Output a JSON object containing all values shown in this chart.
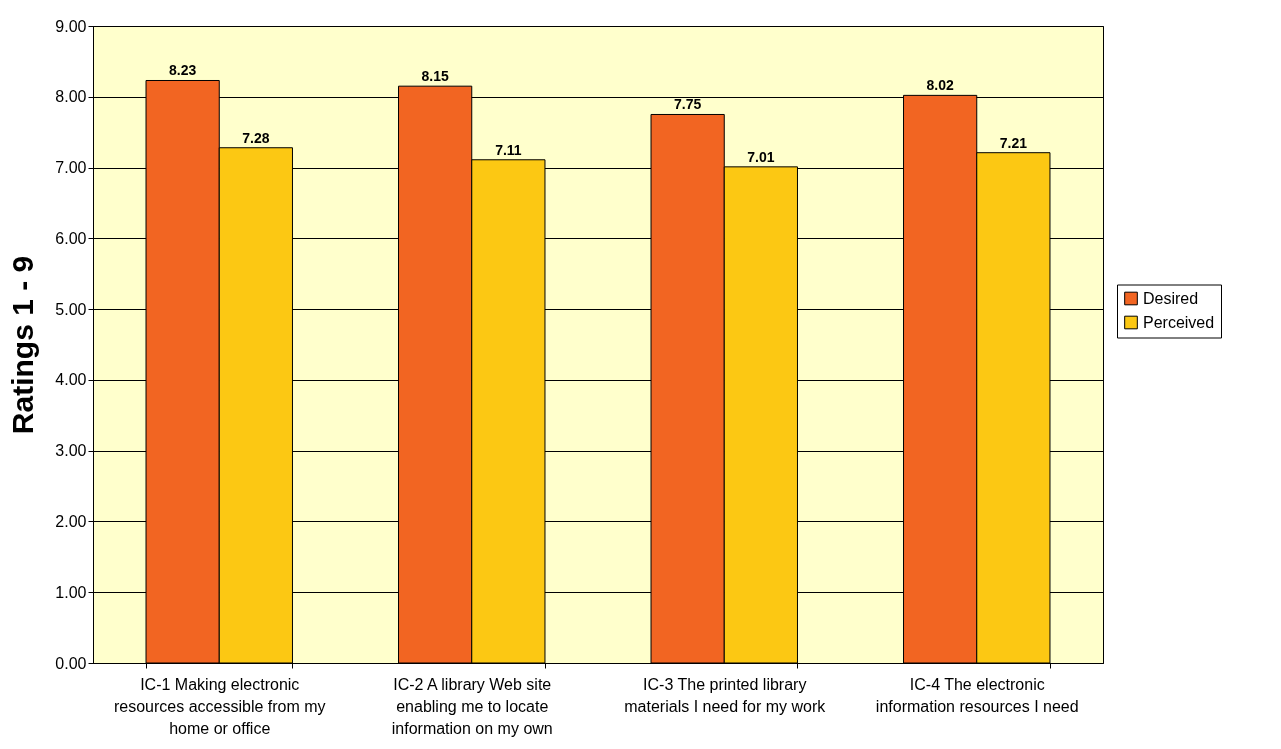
{
  "chart_data": {
    "type": "bar",
    "ylabel": "Ratings 1 - 9",
    "categories": [
      "IC-1 Making electronic resources accessible from my home or office",
      "IC-2 A library Web site enabling me to locate information on my own",
      "IC-3 The printed library materials I need for my work",
      "IC-4 The electronic information resources I need"
    ],
    "series": [
      {
        "name": "Desired",
        "color": "#f26522",
        "values": [
          8.23,
          8.15,
          7.75,
          8.02
        ]
      },
      {
        "name": "Perceived",
        "color": "#fcc813",
        "values": [
          7.28,
          7.11,
          7.01,
          7.21
        ]
      }
    ],
    "ylim": [
      0,
      9
    ],
    "yticks": [
      {
        "value": 0,
        "label": "0.00"
      },
      {
        "value": 1,
        "label": "1.00"
      },
      {
        "value": 2,
        "label": "2.00"
      },
      {
        "value": 3,
        "label": "3.00"
      },
      {
        "value": 4,
        "label": "4.00"
      },
      {
        "value": 5,
        "label": "5.00"
      },
      {
        "value": 6,
        "label": "6.00"
      },
      {
        "value": 7,
        "label": "7.00"
      },
      {
        "value": 8,
        "label": "8.00"
      },
      {
        "value": 9,
        "label": "9.00"
      }
    ],
    "data_labels": true,
    "grid": "y",
    "legend": "right"
  }
}
